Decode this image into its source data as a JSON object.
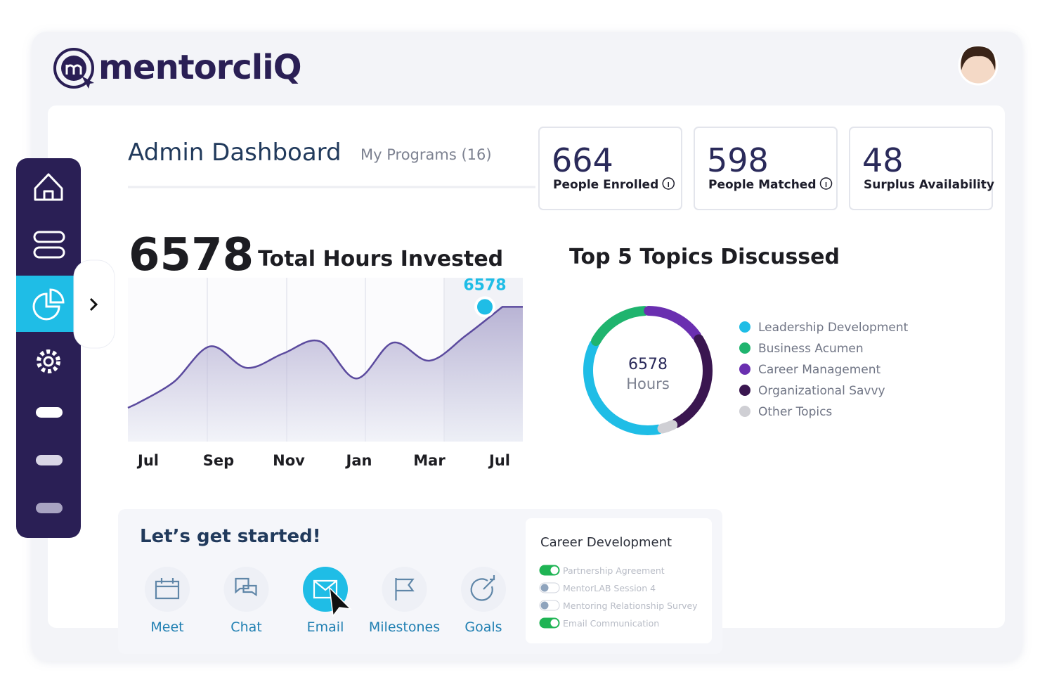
{
  "header": {
    "logo": "mentorcliQ"
  },
  "dashboard": {
    "title": "Admin Dashboard",
    "programs": "My Programs (16)"
  },
  "stats": [
    {
      "value": 664,
      "label": "People Enrolled",
      "info": true
    },
    {
      "value": 598,
      "label": "People Matched",
      "info": true
    },
    {
      "value": 48,
      "label": "Surplus Availability",
      "info": false
    }
  ],
  "hours_chart": {
    "type": "line",
    "total": 6578,
    "title": "Total Hours Invested",
    "categories": [
      "Jul",
      null,
      "Sep",
      null,
      "Nov",
      null,
      "Jan",
      null,
      "Mar",
      null,
      "Jul"
    ],
    "values": [
      1855,
      2900,
      4650,
      3600,
      4300,
      4900,
      3080,
      4830,
      3950,
      5180,
      6578
    ],
    "ylim": [
      0,
      8000
    ],
    "color": "#5b4a9e",
    "marker_color": "#1fbde6"
  },
  "topics_chart": {
    "type": "pie",
    "title": "Top 5 Topics Discussed",
    "center_value": 6578,
    "center_label": "Hours",
    "series": [
      {
        "name": "Leadership Development",
        "color": "#1fbde6",
        "values": [
          36
        ]
      },
      {
        "name": "Business Acumen",
        "color": "#1fb46e",
        "values": [
          17
        ]
      },
      {
        "name": "Career Management",
        "color": "#6a2fb0",
        "values": [
          16
        ]
      },
      {
        "name": "Organizational Savvy",
        "color": "#3a1650",
        "values": [
          27
        ]
      },
      {
        "name": "Other Topics",
        "color": "#cfcfd4",
        "values": [
          4
        ]
      }
    ]
  },
  "get_started": {
    "title": "Let’s get started!",
    "actions": [
      {
        "label": "Meet",
        "active": false
      },
      {
        "label": "Chat",
        "active": false
      },
      {
        "label": "Email",
        "active": true
      },
      {
        "label": "Milestones",
        "active": false
      },
      {
        "label": "Goals",
        "active": false
      }
    ]
  },
  "career": {
    "title": "Career Development",
    "items": [
      {
        "label": "Partnership Agreement",
        "done": true
      },
      {
        "label": "MentorLAB Session 4",
        "done": false
      },
      {
        "label": "Mentoring Relationship Survey",
        "done": false
      },
      {
        "label": "Email Communication",
        "done": true
      }
    ]
  }
}
